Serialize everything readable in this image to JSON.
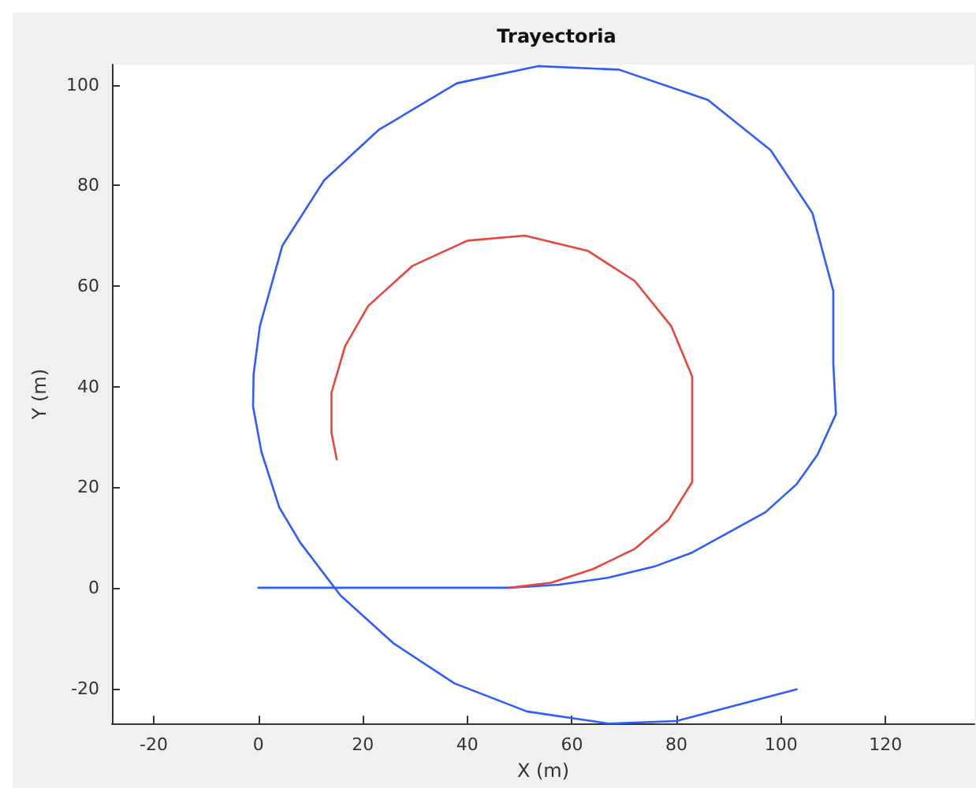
{
  "chart_data": {
    "type": "line",
    "title": "Trayectoria",
    "xlabel": "X (m)",
    "ylabel": "Y (m)",
    "xlim": [
      -28,
      137
    ],
    "ylim": [
      -27,
      104
    ],
    "xticks": [
      -20,
      0,
      20,
      40,
      60,
      80,
      100,
      120
    ],
    "yticks": [
      -20,
      0,
      20,
      40,
      60,
      80,
      100
    ],
    "grid": false,
    "marker": "none",
    "line_style": "solid",
    "series": [
      {
        "color": "#2f5cff",
        "x": [
          0,
          48,
          57.5,
          67,
          76,
          83,
          90,
          97,
          103,
          107,
          110.5,
          110,
          110,
          106,
          98,
          86,
          69,
          53.5,
          38,
          23,
          12.6,
          4.6,
          0.3,
          -0.9,
          -1,
          0.6,
          4,
          8,
          15.7,
          25.8,
          37.5,
          51.4,
          67,
          80,
          103
        ],
        "values": [
          0,
          0,
          0.6,
          2,
          4.3,
          7,
          11,
          15,
          20.6,
          26.5,
          34.5,
          44.6,
          59,
          74.5,
          87,
          97,
          103,
          103.7,
          100.3,
          91,
          81,
          68,
          52,
          42.5,
          36,
          27,
          16,
          9,
          -1.5,
          -11,
          -19,
          -24.6,
          -27,
          -26.5,
          -20.2
        ]
      },
      {
        "color": "#e8463c",
        "x": [
          48,
          56,
          64,
          72,
          78.5,
          83,
          83,
          83,
          79,
          72,
          63,
          51,
          40,
          29.5,
          21,
          16.6,
          14,
          14,
          15
        ],
        "values": [
          0,
          1,
          3.7,
          7.7,
          13.5,
          21,
          30,
          42,
          52,
          61,
          67,
          70,
          69,
          64,
          56,
          48,
          38.8,
          30.8,
          25.5
        ]
      }
    ]
  }
}
